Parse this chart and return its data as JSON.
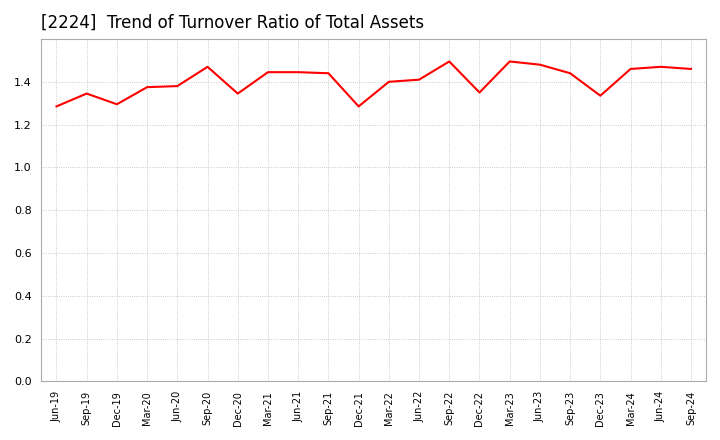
{
  "title": "[2224]  Trend of Turnover Ratio of Total Assets",
  "title_fontsize": 12,
  "line_color": "#FF0000",
  "line_width": 1.5,
  "background_color": "#FFFFFF",
  "grid_color": "#AAAAAA",
  "ylim": [
    0.0,
    1.6
  ],
  "yticks": [
    0.0,
    0.2,
    0.4,
    0.6,
    0.8,
    1.0,
    1.2,
    1.4
  ],
  "labels": [
    "Jun-19",
    "Sep-19",
    "Dec-19",
    "Mar-20",
    "Jun-20",
    "Sep-20",
    "Dec-20",
    "Mar-21",
    "Jun-21",
    "Sep-21",
    "Dec-21",
    "Mar-22",
    "Jun-22",
    "Sep-22",
    "Dec-22",
    "Mar-23",
    "Jun-23",
    "Sep-23",
    "Dec-23",
    "Mar-24",
    "Jun-24",
    "Sep-24"
  ],
  "values": [
    1.285,
    1.345,
    1.295,
    1.375,
    1.38,
    1.47,
    1.345,
    1.445,
    1.445,
    1.44,
    1.285,
    1.4,
    1.41,
    1.495,
    1.35,
    1.495,
    1.48,
    1.44,
    1.335,
    1.46,
    1.47,
    1.46
  ]
}
